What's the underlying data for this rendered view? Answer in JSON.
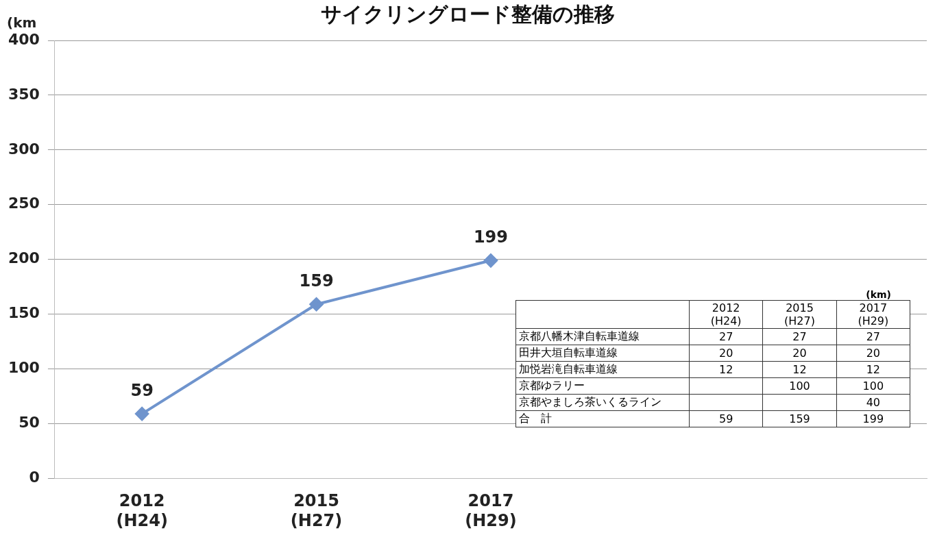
{
  "chart_data": [
    {
      "type": "line",
      "title": "サイクリングロード整備の推移",
      "ylabel": "(km",
      "categories": [
        "2012\n(H24)",
        "2015\n(H27)",
        "2017\n(H29)",
        null,
        null
      ],
      "series": [
        {
          "color": "#6f94cd",
          "values": [
            59,
            159,
            199,
            null,
            null
          ]
        }
      ],
      "ylim": [
        0,
        400
      ],
      "yticks": [
        0,
        50,
        100,
        150,
        200,
        250,
        300,
        350,
        400
      ],
      "grid": "y",
      "legend": false,
      "marker": "diamond",
      "data_labels": true
    },
    {
      "type": "other",
      "title": "(km)",
      "data_labels": true,
      "categories": [
        "2012\n(H24)",
        "2015\n(H27)",
        "2017\n(H29)"
      ],
      "series": [
        {
          "name": "京都八幡木津自転車道線",
          "values": [
            27,
            27,
            27
          ]
        },
        {
          "name": "田井大垣自転車道線",
          "values": [
            20,
            20,
            20
          ]
        },
        {
          "name": "加悦岩滝自転車道線",
          "values": [
            12,
            12,
            12
          ]
        },
        {
          "name": "京都ゆラリー",
          "values": [
            null,
            100,
            100
          ]
        },
        {
          "name": "京都やましろ茶いくるライン",
          "values": [
            null,
            null,
            40
          ]
        },
        {
          "name": "合　計",
          "values": [
            59,
            159,
            199
          ]
        }
      ]
    }
  ]
}
